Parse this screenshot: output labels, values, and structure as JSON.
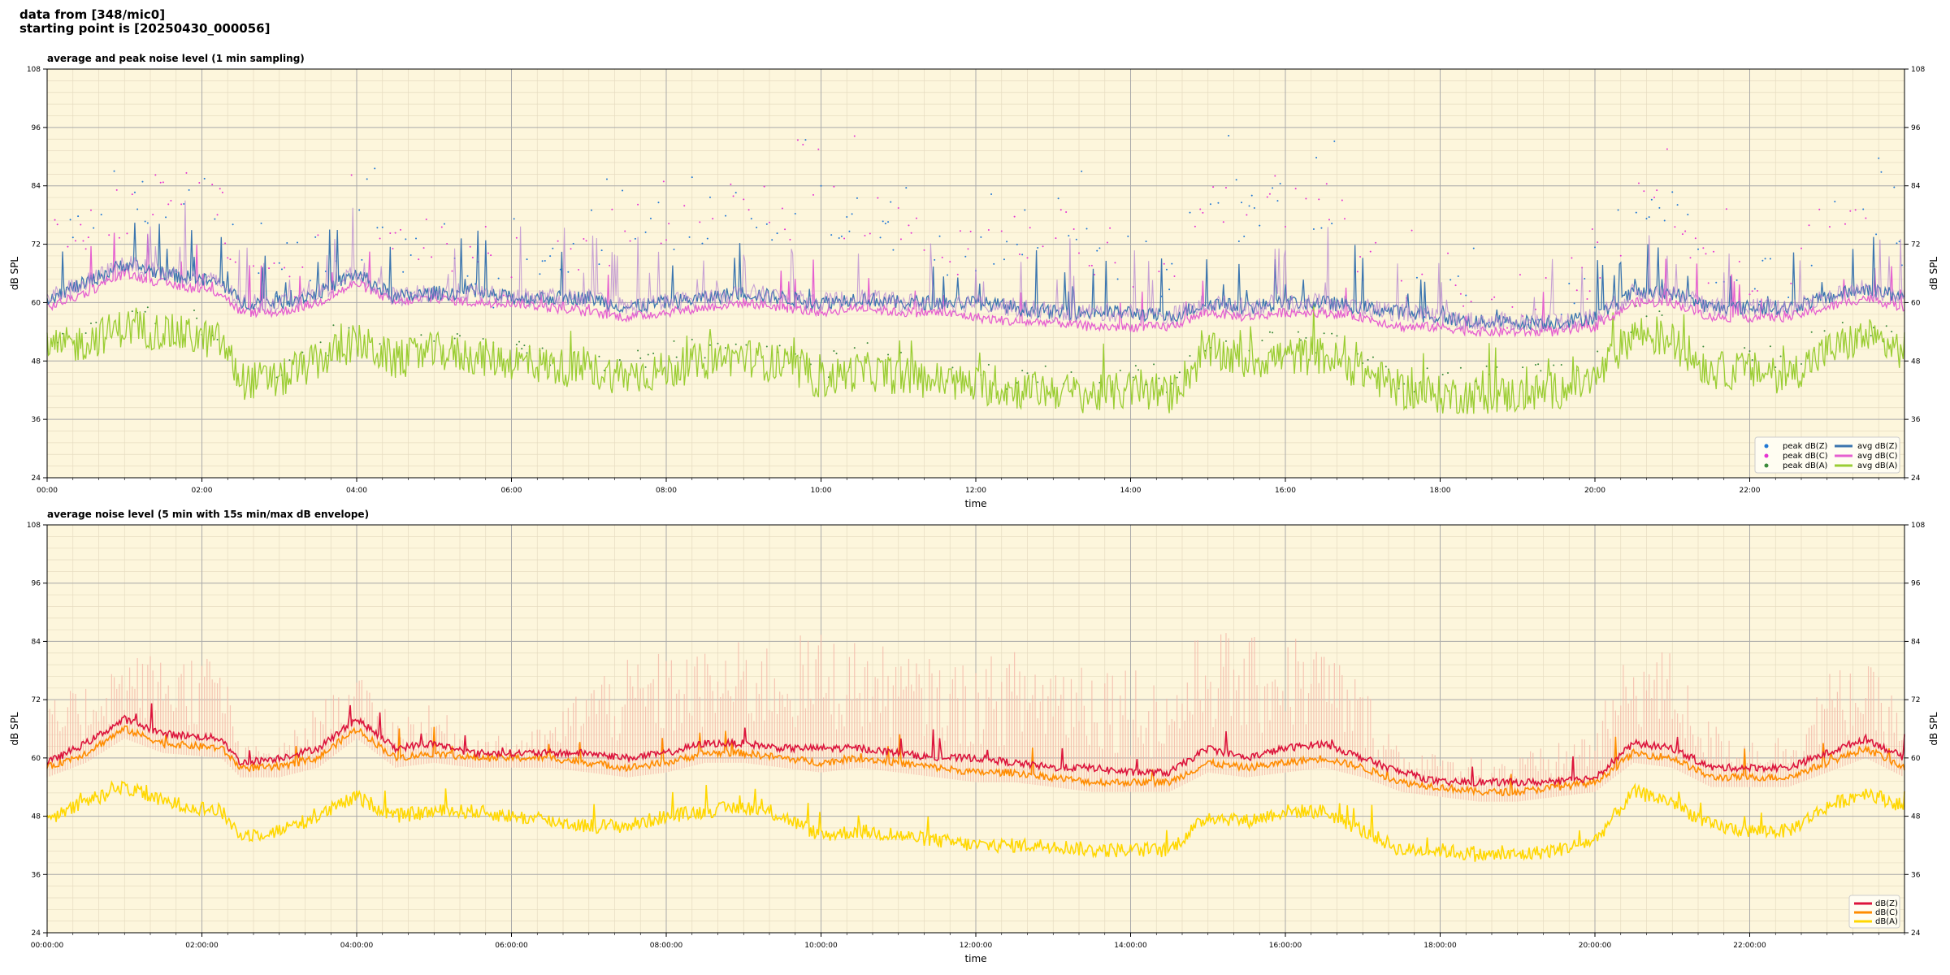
{
  "header": {
    "line1": "data from [348/mic0]",
    "line2": "starting point is [20250430_000056]"
  },
  "colors": {
    "bg": "#fdf6dc",
    "peak_z": "#1f77d4",
    "peak_c": "#e632d2",
    "peak_a": "#3a8a3a",
    "avg_z": "#3b75af",
    "avg_c": "#e55fd0",
    "avg_a": "#9acd32",
    "avg_z_overlap": "#b07fd0",
    "dbz": "#dc143c",
    "dbc": "#ff8c00",
    "dba": "#ffd700",
    "envelope": "#f4b8a8"
  },
  "chart_data": [
    {
      "type": "line",
      "title": "average and peak noise level (1 min sampling)",
      "xlabel": "time",
      "ylabel": "dB SPL",
      "xlim": [
        "00:00",
        "24:00"
      ],
      "ylim": [
        24,
        108
      ],
      "yticks": [
        "24",
        "36",
        "48",
        "60",
        "72",
        "84",
        "96",
        "108"
      ],
      "xticks": [
        "00:00",
        "02:00",
        "04:00",
        "06:00",
        "08:00",
        "10:00",
        "12:00",
        "14:00",
        "16:00",
        "18:00",
        "20:00",
        "22:00"
      ],
      "grid": true,
      "legend_position": "bottom-right",
      "legend": [
        {
          "label": "peak dB(Z)",
          "kind": "marker",
          "color": "#1f77d4"
        },
        {
          "label": "peak dB(C)",
          "kind": "marker",
          "color": "#e632d2"
        },
        {
          "label": "peak dB(A)",
          "kind": "marker",
          "color": "#3a8a3a"
        },
        {
          "label": "avg dB(Z)",
          "kind": "line",
          "color": "#3b75af"
        },
        {
          "label": "avg dB(C)",
          "kind": "line",
          "color": "#e55fd0"
        },
        {
          "label": "avg dB(A)",
          "kind": "line",
          "color": "#9acd32"
        }
      ],
      "profile": {
        "hours": [
          0,
          0.5,
          1,
          1.5,
          2.25,
          2.5,
          3,
          3.5,
          4,
          4.5,
          5,
          5.5,
          6,
          6.5,
          7,
          7.5,
          8,
          8.5,
          9,
          9.5,
          10,
          10.5,
          11,
          11.5,
          12,
          12.5,
          13,
          13.5,
          14,
          14.5,
          15,
          15.5,
          16,
          16.5,
          17,
          17.5,
          18,
          18.5,
          19,
          19.5,
          20,
          20.5,
          21,
          21.5,
          22,
          22.5,
          23,
          23.5,
          24
        ],
        "avg_z": [
          61,
          64,
          68,
          66,
          64,
          60,
          60,
          62,
          66,
          61,
          62,
          62,
          61,
          61,
          61,
          59,
          60,
          61,
          62,
          61,
          60,
          61,
          60,
          60,
          60,
          59,
          58,
          58,
          58,
          57,
          60,
          59,
          60,
          60,
          59,
          58,
          57,
          56,
          56,
          56,
          57,
          62,
          62,
          59,
          59,
          59,
          61,
          63,
          61
        ],
        "avg_c": [
          59,
          62,
          66,
          64,
          62,
          58,
          58,
          60,
          64,
          60,
          61,
          60,
          60,
          59,
          58,
          57,
          58,
          59,
          60,
          59,
          58,
          59,
          58,
          58,
          57,
          56,
          56,
          55,
          55,
          55,
          58,
          57,
          58,
          58,
          57,
          55,
          55,
          54,
          54,
          54,
          55,
          60,
          60,
          57,
          57,
          57,
          59,
          61,
          59
        ],
        "avg_a": [
          50,
          52,
          55,
          54,
          52,
          44,
          44,
          48,
          52,
          48,
          50,
          49,
          48,
          47,
          46,
          45,
          46,
          48,
          49,
          47,
          44,
          46,
          45,
          44,
          43,
          42,
          42,
          41,
          42,
          41,
          50,
          48,
          49,
          49,
          46,
          42,
          41,
          41,
          41,
          42,
          44,
          54,
          52,
          46,
          46,
          45,
          50,
          53,
          50
        ],
        "peak": [
          72,
          74,
          80,
          82,
          80,
          64,
          64,
          70,
          74,
          70,
          72,
          66,
          64,
          66,
          72,
          74,
          76,
          76,
          80,
          78,
          80,
          78,
          74,
          72,
          70,
          74,
          76,
          72,
          68,
          66,
          80,
          78,
          80,
          80,
          70,
          64,
          60,
          60,
          60,
          62,
          66,
          80,
          78,
          66,
          64,
          64,
          76,
          78,
          72
        ]
      }
    },
    {
      "type": "line",
      "title": "average noise level (5 min with 15s min/max dB envelope)",
      "xlabel": "time",
      "ylabel": "dB SPL",
      "xlim": [
        "00:00:00",
        "24:00:00"
      ],
      "ylim": [
        24,
        108
      ],
      "yticks": [
        "24",
        "36",
        "48",
        "60",
        "72",
        "84",
        "96",
        "108"
      ],
      "xticks": [
        "00:00:00",
        "02:00:00",
        "04:00:00",
        "06:00:00",
        "08:00:00",
        "10:00:00",
        "12:00:00",
        "14:00:00",
        "16:00:00",
        "18:00:00",
        "20:00:00",
        "22:00:00"
      ],
      "grid": true,
      "legend_position": "bottom-right",
      "legend": [
        {
          "label": "dB(Z)",
          "kind": "line",
          "color": "#dc143c"
        },
        {
          "label": "dB(C)",
          "kind": "line",
          "color": "#ff8c00"
        },
        {
          "label": "dB(A)",
          "kind": "line",
          "color": "#ffd700"
        }
      ],
      "profile": {
        "hours": [
          0,
          0.5,
          1,
          1.5,
          2.25,
          2.5,
          3,
          3.5,
          4,
          4.5,
          5,
          5.5,
          6,
          6.5,
          7,
          7.5,
          8,
          8.5,
          9,
          9.5,
          10,
          10.5,
          11,
          11.5,
          12,
          12.5,
          13,
          13.5,
          14,
          14.5,
          15,
          15.5,
          16,
          16.5,
          17,
          17.5,
          18,
          18.5,
          19,
          19.5,
          20,
          20.5,
          21,
          21.5,
          22,
          22.5,
          23,
          23.5,
          24
        ],
        "dbz": [
          59,
          63,
          68,
          65,
          64,
          59,
          60,
          62,
          68,
          62,
          63,
          61,
          61,
          61,
          61,
          60,
          61,
          63,
          63,
          62,
          62,
          62,
          61,
          60,
          60,
          59,
          58,
          58,
          57,
          57,
          62,
          60,
          62,
          63,
          60,
          57,
          55,
          55,
          55,
          55,
          56,
          63,
          62,
          58,
          58,
          58,
          61,
          64,
          60
        ],
        "dbc": [
          58,
          61,
          66,
          63,
          62,
          58,
          58,
          60,
          66,
          60,
          61,
          60,
          60,
          60,
          59,
          58,
          59,
          61,
          61,
          60,
          59,
          60,
          59,
          58,
          57,
          57,
          56,
          55,
          55,
          55,
          59,
          58,
          59,
          60,
          58,
          55,
          54,
          53,
          53,
          54,
          55,
          61,
          60,
          56,
          56,
          56,
          59,
          62,
          58
        ],
        "dba": [
          47,
          51,
          54,
          51,
          49,
          44,
          45,
          48,
          52,
          48,
          49,
          49,
          48,
          47,
          46,
          46,
          48,
          49,
          50,
          48,
          44,
          45,
          44,
          43,
          42,
          42,
          42,
          41,
          41,
          41,
          48,
          47,
          49,
          49,
          45,
          41,
          41,
          40,
          40,
          41,
          43,
          53,
          51,
          46,
          45,
          45,
          50,
          53,
          50
        ],
        "env_max": [
          70,
          74,
          80,
          80,
          80,
          62,
          62,
          70,
          76,
          68,
          70,
          64,
          64,
          66,
          76,
          78,
          80,
          80,
          82,
          82,
          84,
          82,
          80,
          78,
          78,
          80,
          80,
          80,
          78,
          74,
          86,
          82,
          84,
          82,
          74,
          62,
          60,
          60,
          60,
          62,
          66,
          82,
          80,
          66,
          64,
          64,
          76,
          78,
          70
        ]
      }
    }
  ]
}
